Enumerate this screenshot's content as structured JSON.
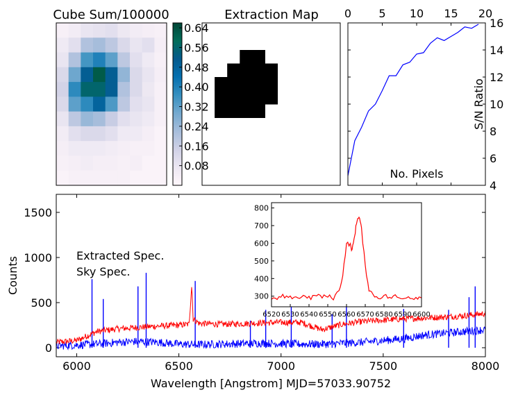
{
  "colors": {
    "extracted": "#ff0000",
    "sky": "#0000ff",
    "sn_line": "#0000ff",
    "mask": "#000000",
    "colormap": [
      "#fff7fb",
      "#ece7f2",
      "#d0d1e6",
      "#a6bddb",
      "#74a9cf",
      "#3690c0",
      "#0570b0",
      "#045a8d",
      "#016c59",
      "#014636"
    ]
  },
  "chart_data": [
    {
      "type": "heatmap",
      "title": "Cube Sum/100000",
      "colormap": "PuBuGn",
      "colorbar": {
        "ticks": [
          "0.08",
          "0.16",
          "0.24",
          "0.32",
          "0.40",
          "0.48",
          "0.56",
          "0.64"
        ],
        "tick_values": [
          0.08,
          0.16,
          0.24,
          0.32,
          0.4,
          0.48,
          0.56,
          0.64
        ],
        "range": [
          0.0,
          0.66
        ]
      },
      "grid": [
        [
          0.03,
          0.05,
          0.08,
          0.09,
          0.1,
          0.07,
          0.05,
          0.04,
          0.03
        ],
        [
          0.06,
          0.1,
          0.2,
          0.22,
          0.18,
          0.12,
          0.08,
          0.1,
          0.04
        ],
        [
          0.08,
          0.2,
          0.35,
          0.4,
          0.32,
          0.18,
          0.1,
          0.06,
          0.03
        ],
        [
          0.12,
          0.3,
          0.5,
          0.62,
          0.5,
          0.25,
          0.12,
          0.08,
          0.04
        ],
        [
          0.14,
          0.38,
          0.56,
          0.56,
          0.5,
          0.2,
          0.12,
          0.07,
          0.03
        ],
        [
          0.12,
          0.32,
          0.38,
          0.48,
          0.34,
          0.18,
          0.1,
          0.08,
          0.03
        ],
        [
          0.08,
          0.18,
          0.24,
          0.22,
          0.16,
          0.1,
          0.08,
          0.06,
          0.03
        ],
        [
          0.05,
          0.1,
          0.12,
          0.12,
          0.1,
          0.06,
          0.06,
          0.04,
          0.02
        ],
        [
          0.04,
          0.06,
          0.06,
          0.06,
          0.05,
          0.04,
          0.03,
          0.03,
          0.02
        ],
        [
          0.03,
          0.04,
          0.05,
          0.04,
          0.04,
          0.03,
          0.04,
          0.02,
          0.02
        ],
        [
          0.02,
          0.03,
          0.03,
          0.03,
          0.03,
          0.03,
          0.02,
          0.02,
          0.02
        ]
      ]
    },
    {
      "type": "heatmap",
      "title": "Extraction Map",
      "grid": [
        [
          0,
          0,
          0,
          0,
          0,
          0,
          0,
          0,
          0,
          0,
          0
        ],
        [
          0,
          0,
          0,
          0,
          0,
          0,
          0,
          0,
          0,
          0,
          0
        ],
        [
          0,
          0,
          0,
          1,
          1,
          0,
          0,
          0,
          0,
          0,
          0
        ],
        [
          0,
          0,
          1,
          1,
          1,
          1,
          0,
          0,
          0,
          0,
          0
        ],
        [
          0,
          1,
          1,
          1,
          1,
          1,
          0,
          0,
          0,
          0,
          0
        ],
        [
          0,
          1,
          1,
          1,
          1,
          1,
          0,
          0,
          0,
          0,
          0
        ],
        [
          0,
          1,
          1,
          1,
          1,
          0,
          0,
          0,
          0,
          0,
          0
        ],
        [
          0,
          0,
          0,
          0,
          0,
          0,
          0,
          0,
          0,
          0,
          0
        ],
        [
          0,
          0,
          0,
          0,
          0,
          0,
          0,
          0,
          0,
          0,
          0
        ],
        [
          0,
          0,
          0,
          0,
          0,
          0,
          0,
          0,
          0,
          0,
          0
        ],
        [
          0,
          0,
          0,
          0,
          0,
          0,
          0,
          0,
          0,
          0,
          0
        ],
        [
          0,
          0,
          0,
          0,
          0,
          0,
          0,
          0,
          0,
          0,
          0
        ]
      ]
    },
    {
      "type": "line",
      "xlabel": "No. Pixels",
      "ylabel": "S/N Ratio",
      "xlim": [
        0,
        20
      ],
      "ylim": [
        4,
        16
      ],
      "xticks": [
        "0",
        "5",
        "10",
        "15",
        "20"
      ],
      "yticks": [
        "4",
        "6",
        "8",
        "10",
        "12",
        "14",
        "16"
      ],
      "series": [
        {
          "x": [
            0,
            1,
            2,
            3,
            4,
            5,
            6,
            7,
            8,
            9,
            10,
            11,
            12,
            13,
            14,
            15,
            16,
            17,
            18,
            19
          ],
          "values": [
            4.7,
            7.3,
            8.3,
            9.5,
            10.0,
            11.0,
            12.1,
            12.1,
            12.9,
            13.1,
            13.7,
            13.8,
            14.5,
            14.9,
            14.7,
            15.0,
            15.3,
            15.7,
            15.6,
            15.9
          ]
        }
      ]
    },
    {
      "type": "line",
      "xlabel": "Wavelength [Angstrom] MJD=57033.90752",
      "ylabel": "Counts",
      "xlim": [
        5900,
        8000
      ],
      "ylim": [
        -100,
        1700
      ],
      "xticks": [
        "6000",
        "6500",
        "7000",
        "7500",
        "8000"
      ],
      "yticks": [
        "0",
        "500",
        "1000",
        "1500"
      ],
      "legend": {
        "placement": "upper-left",
        "extracted_label": "Extracted Spec.",
        "sky_label": "Sky Spec."
      },
      "series": [
        {
          "x": [
            5900,
            6000,
            6100,
            6200,
            6300,
            6400,
            6500,
            6550,
            6563,
            6570,
            6600,
            6700,
            6800,
            6900,
            7000,
            7100,
            7200,
            7300,
            7400,
            7500,
            7600,
            7700,
            7800,
            7900,
            8000
          ],
          "values": [
            60,
            80,
            180,
            210,
            225,
            240,
            250,
            260,
            700,
            320,
            270,
            260,
            265,
            275,
            280,
            280,
            200,
            260,
            290,
            305,
            320,
            330,
            340,
            355,
            380
          ]
        },
        {
          "x": [
            5900,
            6000,
            6100,
            6200,
            6300,
            6400,
            6500,
            6600,
            6700,
            6800,
            6900,
            7000,
            7100,
            7200,
            7300,
            7400,
            7500,
            7600,
            7700,
            7800,
            7900,
            8000
          ],
          "values": [
            20,
            30,
            40,
            60,
            70,
            60,
            40,
            35,
            40,
            45,
            50,
            45,
            40,
            40,
            50,
            60,
            80,
            100,
            140,
            160,
            180,
            200
          ],
          "lines": [
            {
              "x": 6075,
              "y": 760
            },
            {
              "x": 6130,
              "y": 540
            },
            {
              "x": 6300,
              "y": 680
            },
            {
              "x": 6340,
              "y": 830
            },
            {
              "x": 6580,
              "y": 740
            },
            {
              "x": 6850,
              "y": 300
            },
            {
              "x": 6925,
              "y": 420
            },
            {
              "x": 7050,
              "y": 540
            },
            {
              "x": 7250,
              "y": 370
            },
            {
              "x": 7320,
              "y": 550
            },
            {
              "x": 7600,
              "y": 430
            },
            {
              "x": 7820,
              "y": 420
            },
            {
              "x": 7920,
              "y": 560
            },
            {
              "x": 7950,
              "y": 680
            }
          ]
        }
      ]
    },
    {
      "type": "line",
      "xlim": [
        6520,
        6600
      ],
      "ylim": [
        240,
        830
      ],
      "xticks": [
        "6520",
        "6530",
        "6540",
        "6550",
        "6560",
        "6570",
        "6580",
        "6590",
        "6600"
      ],
      "yticks": [
        "300",
        "400",
        "500",
        "600",
        "700",
        "800"
      ],
      "series": [
        {
          "x": [
            6520,
            6523,
            6526,
            6529,
            6532,
            6535,
            6538,
            6541,
            6544,
            6547,
            6550,
            6553,
            6556,
            6558,
            6560,
            6562,
            6563,
            6564,
            6565,
            6566,
            6567,
            6568,
            6570,
            6572,
            6574,
            6577,
            6580,
            6583,
            6586,
            6589,
            6592,
            6595,
            6598,
            6600
          ],
          "values": [
            290,
            280,
            300,
            285,
            300,
            290,
            305,
            285,
            310,
            295,
            300,
            290,
            330,
            420,
            600,
            590,
            560,
            620,
            690,
            750,
            740,
            680,
            470,
            340,
            310,
            290,
            305,
            290,
            300,
            285,
            300,
            290,
            295,
            290
          ]
        }
      ]
    }
  ]
}
